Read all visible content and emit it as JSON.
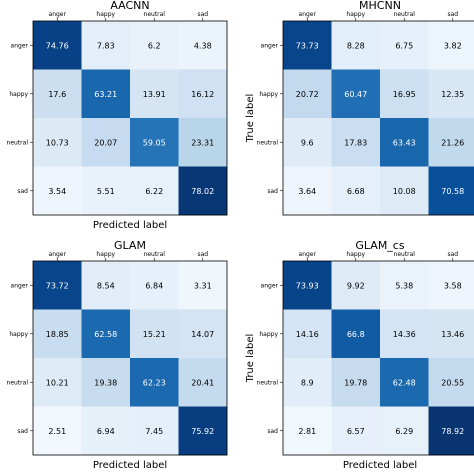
{
  "chart_data": [
    {
      "type": "heatmap",
      "title": "AACNN",
      "x_tick_labels": [
        "anger",
        "happy",
        "neutral",
        "sad"
      ],
      "y_tick_labels": [
        "anger",
        "happy",
        "neutral",
        "sad"
      ],
      "xlabel": "Predicted label",
      "ylabel": "",
      "values": [
        [
          74.76,
          7.83,
          6.2,
          4.38
        ],
        [
          17.6,
          63.21,
          13.91,
          16.12
        ],
        [
          10.73,
          20.07,
          59.05,
          23.31
        ],
        [
          3.54,
          5.51,
          6.22,
          78.02
        ]
      ],
      "colormap": "Blues",
      "value_range": [
        0,
        80
      ]
    },
    {
      "type": "heatmap",
      "title": "MHCNN",
      "x_tick_labels": [
        "anger",
        "happy",
        "neutral",
        "sad"
      ],
      "y_tick_labels": [
        "anger",
        "happy",
        "neutral",
        "sad"
      ],
      "xlabel": "",
      "ylabel": "True label",
      "values": [
        [
          73.73,
          8.28,
          6.75,
          3.82
        ],
        [
          20.72,
          60.47,
          16.95,
          12.35
        ],
        [
          9.6,
          17.83,
          63.43,
          21.26
        ],
        [
          3.64,
          6.68,
          10.08,
          70.58
        ]
      ],
      "colormap": "Blues",
      "value_range": [
        0,
        80
      ]
    },
    {
      "type": "heatmap",
      "title": "GLAM",
      "x_tick_labels": [
        "anger",
        "happy",
        "neutral",
        "sad"
      ],
      "y_tick_labels": [
        "anger",
        "happy",
        "neutral",
        "sad"
      ],
      "xlabel": "Predicted label",
      "ylabel": "",
      "values": [
        [
          73.72,
          8.54,
          6.84,
          3.31
        ],
        [
          18.85,
          62.58,
          15.21,
          14.07
        ],
        [
          10.21,
          19.38,
          62.23,
          20.41
        ],
        [
          2.51,
          6.94,
          7.45,
          75.92
        ]
      ],
      "colormap": "Blues",
      "value_range": [
        0,
        80
      ]
    },
    {
      "type": "heatmap",
      "title": "GLAM_cs",
      "x_tick_labels": [
        "anger",
        "happy",
        "neutral",
        "sad"
      ],
      "y_tick_labels": [
        "anger",
        "happy",
        "neutral",
        "sad"
      ],
      "xlabel": "Predicted label",
      "ylabel": "True label",
      "values": [
        [
          73.93,
          9.92,
          5.38,
          3.58
        ],
        [
          14.16,
          66.8,
          14.36,
          13.46
        ],
        [
          8.9,
          19.78,
          62.48,
          20.55
        ],
        [
          2.81,
          6.57,
          6.29,
          78.92
        ]
      ],
      "colormap": "Blues",
      "value_range": [
        0,
        80
      ]
    }
  ]
}
